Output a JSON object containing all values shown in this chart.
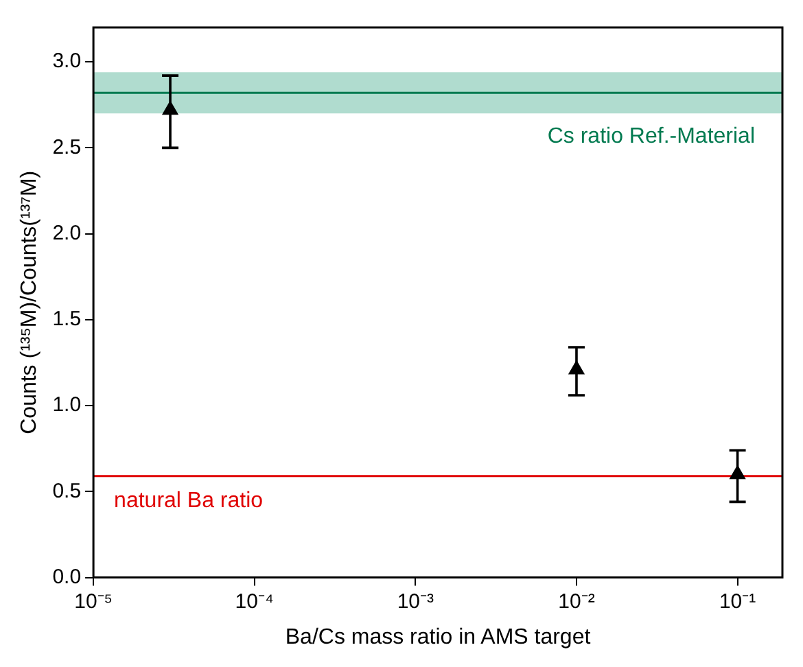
{
  "chart_data": {
    "type": "scatter",
    "xlabel": "Ba/Cs mass ratio in AMS target",
    "ylabel": "Counts (¹³⁵M)/Counts(¹³⁷M)",
    "x": [
      3e-05,
      0.01,
      0.1
    ],
    "series": [
      {
        "color": "#000000",
        "values": [
          2.72,
          1.21,
          0.6
        ],
        "errors": [
          [
            2.5,
            2.92
          ],
          [
            1.06,
            1.34
          ],
          [
            0.44,
            0.74
          ]
        ]
      }
    ],
    "log": "x",
    "marker": "triangle",
    "grid": false,
    "legend": false,
    "xlim": [
      1e-05,
      0.19
    ],
    "xticks": [
      {
        "value": 1e-05,
        "label": "10⁻⁵"
      },
      {
        "value": 0.0001,
        "label": "10⁻⁴"
      },
      {
        "value": 0.001,
        "label": "10⁻³"
      },
      {
        "value": 0.01,
        "label": "10⁻²"
      },
      {
        "value": 0.1,
        "label": "10⁻¹"
      }
    ],
    "ylim": [
      0,
      3.2
    ],
    "yticks": [
      {
        "value": 0,
        "label": "0.0"
      },
      {
        "value": 0.5,
        "label": "0.5"
      },
      {
        "value": 1,
        "label": "1.0"
      },
      {
        "value": 1.5,
        "label": "1.5"
      },
      {
        "value": 2,
        "label": "2.0"
      },
      {
        "value": 2.5,
        "label": "2.5"
      },
      {
        "value": 3,
        "label": "3.0"
      }
    ],
    "ref_lines": [
      {
        "axis": "y",
        "value": 0.59,
        "label": "natural Ba ratio",
        "color": "#e00000"
      },
      {
        "axis": "y",
        "value": 2.82,
        "label": "Cs ratio Ref.-Material",
        "color": "#007a50"
      }
    ],
    "bands": [
      {
        "axis": "y",
        "from": 2.7,
        "to": 2.94,
        "color": "#b0dccf"
      }
    ]
  }
}
